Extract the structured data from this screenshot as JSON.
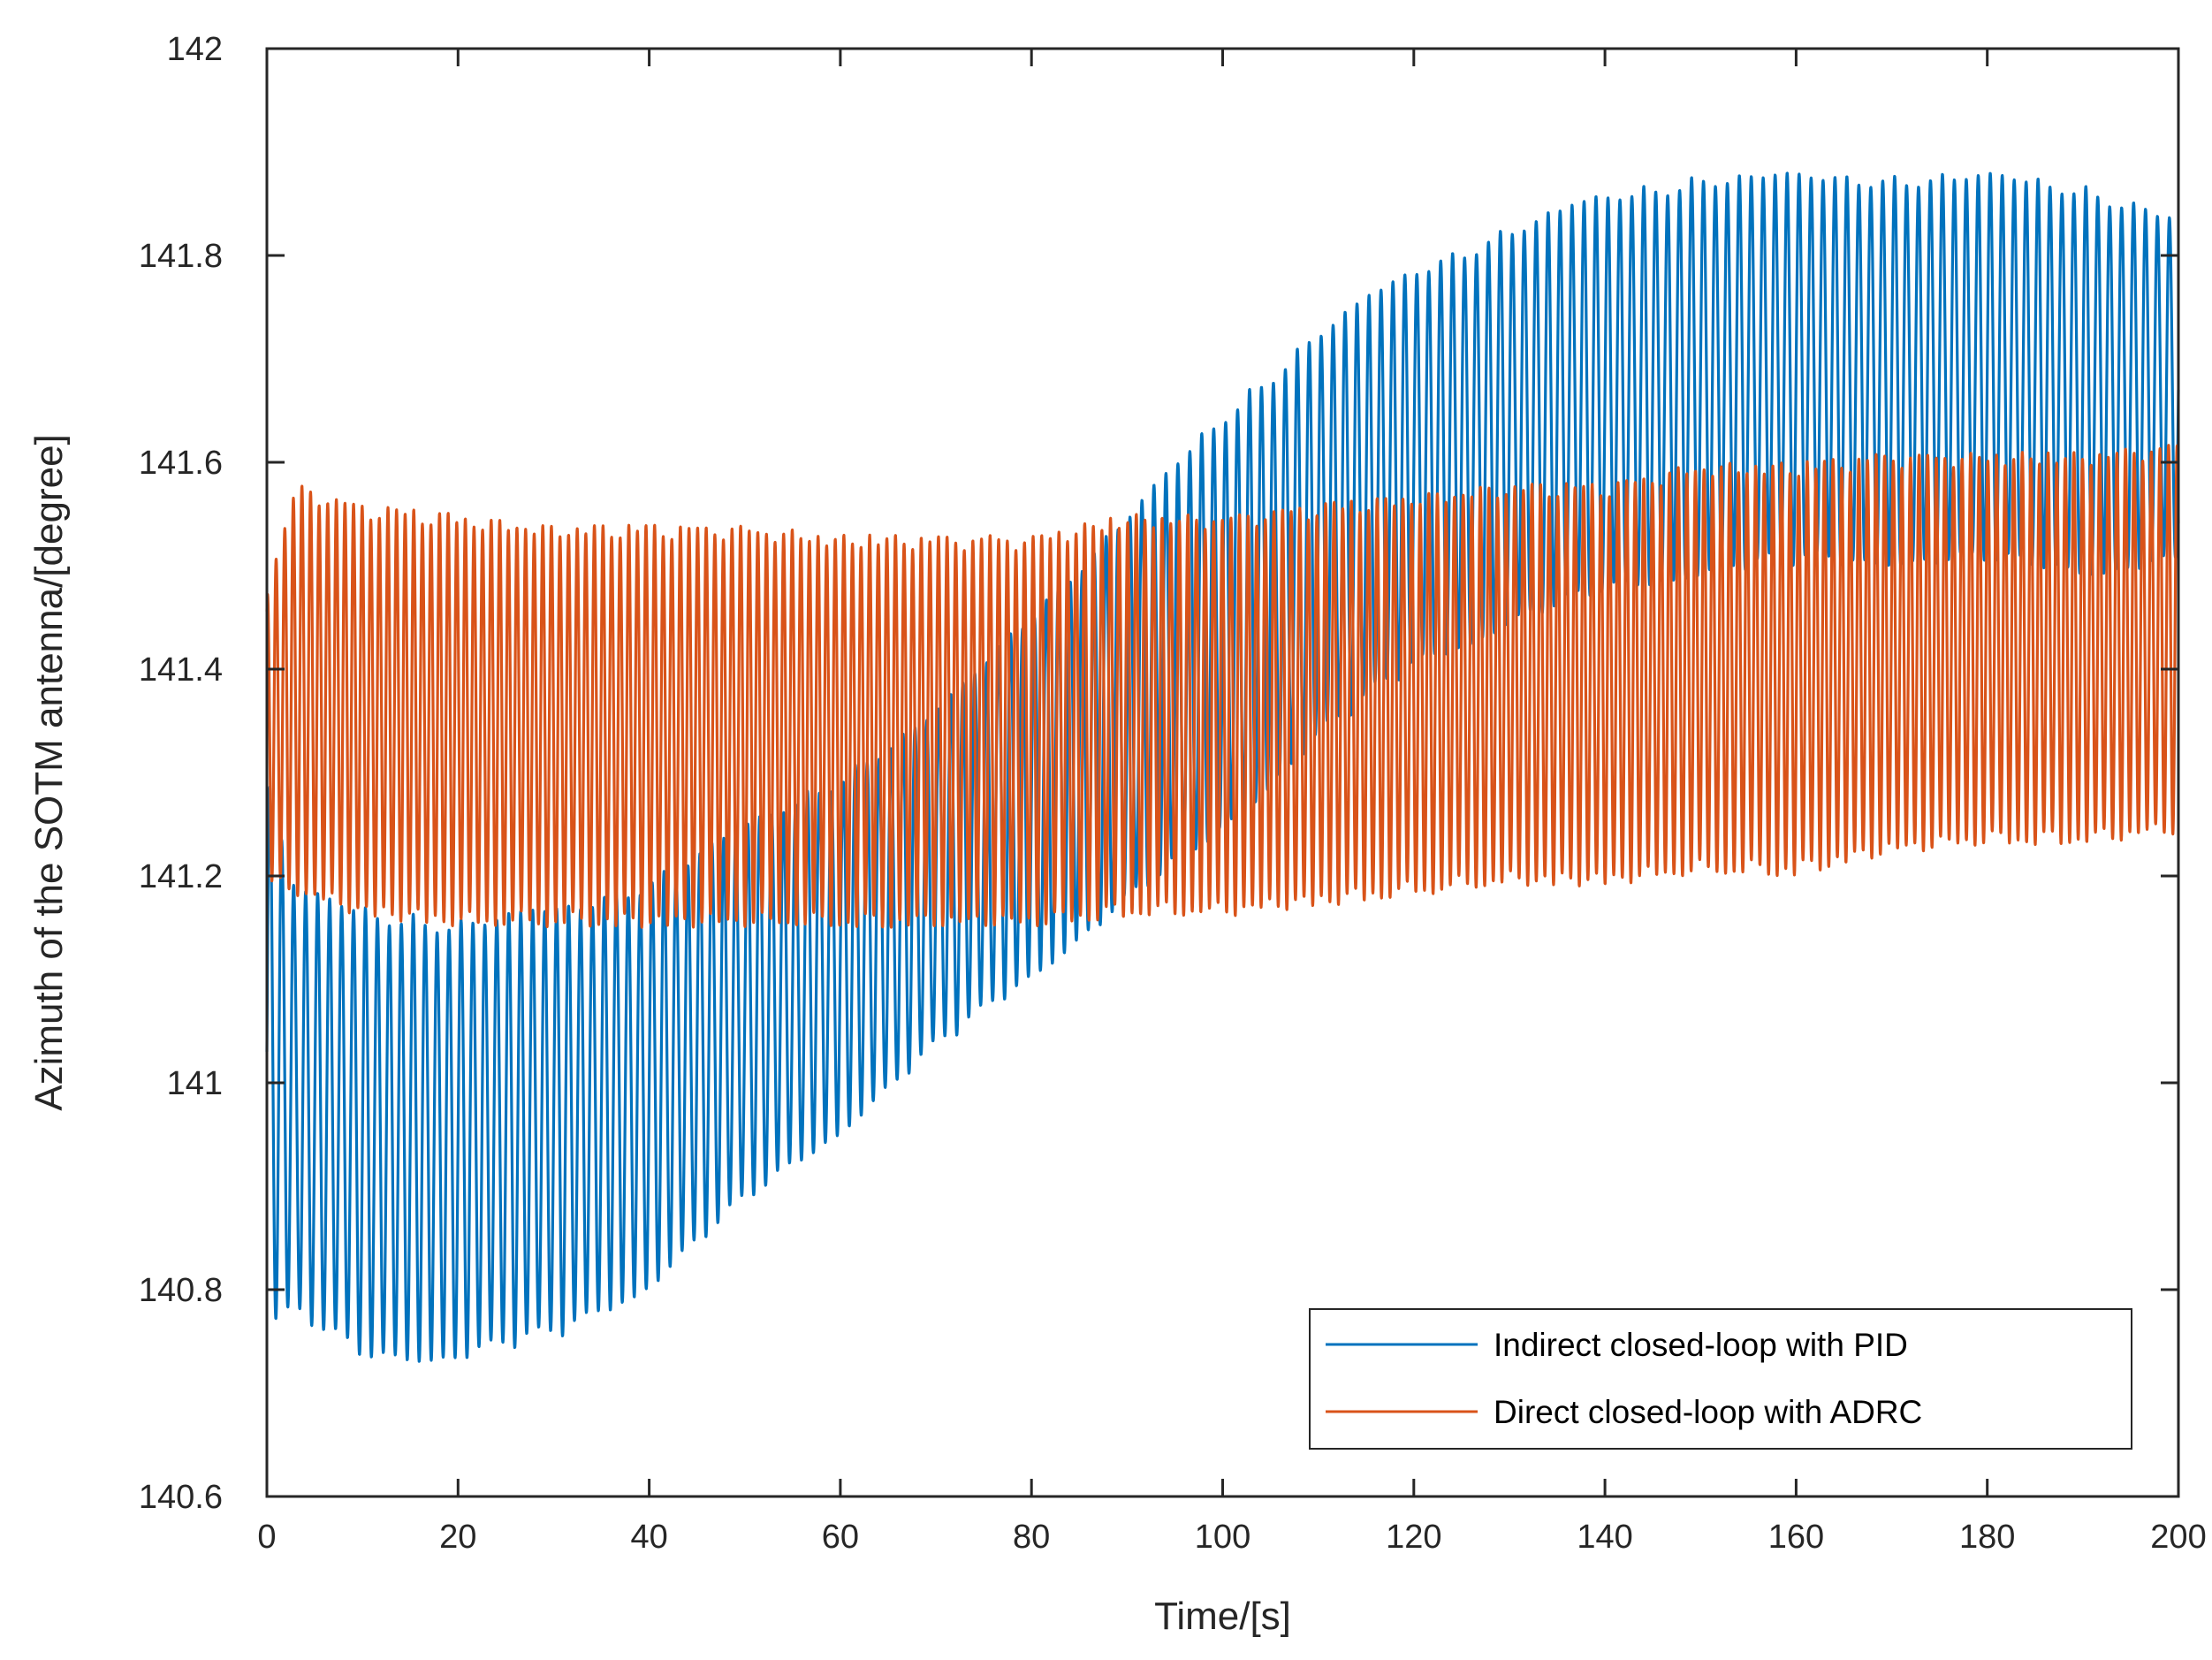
{
  "chart_data": {
    "type": "line",
    "title": "",
    "xlabel": "Time/[s]",
    "ylabel": "Azimuth of the SOTM antenna/[degree]",
    "xlim": [
      0,
      200
    ],
    "ylim": [
      140.6,
      142
    ],
    "xticks": [
      0,
      20,
      40,
      60,
      80,
      100,
      120,
      140,
      160,
      180,
      200
    ],
    "xtick_labels": [
      "0",
      "20",
      "40",
      "60",
      "80",
      "100",
      "120",
      "140",
      "160",
      "180",
      "200"
    ],
    "yticks": [
      140.6,
      140.8,
      141,
      141.2,
      141.4,
      141.6,
      141.8,
      142
    ],
    "ytick_labels": [
      "140.6",
      "140.8",
      "141",
      "141.2",
      "141.4",
      "141.6",
      "141.8",
      "142"
    ],
    "grid": false,
    "legend_position": "bottom-right",
    "series": [
      {
        "name": "Indirect closed-loop with PID",
        "color": "#0072BD",
        "oscillation_period_s": 1.25,
        "upper_envelope": {
          "t": [
            0,
            3,
            10,
            20,
            30,
            40,
            50,
            60,
            70,
            80,
            90,
            100,
            110,
            120,
            130,
            140,
            150,
            160,
            170,
            180,
            190,
            200
          ],
          "v": [
            141.3,
            141.19,
            141.17,
            141.16,
            141.17,
            141.2,
            141.25,
            141.3,
            141.36,
            141.46,
            141.55,
            141.65,
            141.73,
            141.79,
            141.83,
            141.86,
            141.88,
            141.88,
            141.88,
            141.88,
            141.87,
            141.84
          ]
        },
        "lower_envelope": {
          "t": [
            0,
            3,
            10,
            20,
            30,
            40,
            50,
            60,
            70,
            80,
            90,
            100,
            110,
            120,
            130,
            140,
            150,
            160,
            170,
            180,
            190,
            200
          ],
          "v": [
            140.76,
            140.77,
            140.73,
            140.73,
            140.75,
            140.8,
            140.88,
            140.95,
            141.03,
            141.1,
            141.17,
            141.24,
            141.33,
            141.4,
            141.44,
            141.47,
            141.49,
            141.5,
            141.5,
            141.5,
            141.49,
            141.5
          ]
        }
      },
      {
        "name": "Direct closed-loop with ADRC",
        "color": "#D95319",
        "oscillation_period_s": 0.9,
        "upper_envelope": {
          "t": [
            0,
            3,
            10,
            20,
            30,
            40,
            50,
            60,
            70,
            80,
            90,
            100,
            110,
            120,
            130,
            140,
            150,
            160,
            170,
            180,
            190,
            200
          ],
          "v": [
            141.48,
            141.58,
            141.56,
            141.55,
            141.54,
            141.54,
            141.54,
            141.53,
            141.53,
            141.53,
            141.55,
            141.55,
            141.56,
            141.57,
            141.58,
            141.58,
            141.6,
            141.6,
            141.61,
            141.61,
            141.61,
            141.62
          ]
        },
        "lower_envelope": {
          "t": [
            0,
            3,
            10,
            20,
            30,
            40,
            50,
            60,
            70,
            80,
            90,
            100,
            110,
            120,
            130,
            140,
            150,
            160,
            170,
            180,
            190,
            200
          ],
          "v": [
            141.19,
            141.18,
            141.16,
            141.15,
            141.15,
            141.15,
            141.15,
            141.15,
            141.15,
            141.15,
            141.16,
            141.16,
            141.17,
            141.18,
            141.19,
            141.19,
            141.2,
            141.2,
            141.22,
            141.23,
            141.23,
            141.24
          ]
        }
      }
    ]
  }
}
